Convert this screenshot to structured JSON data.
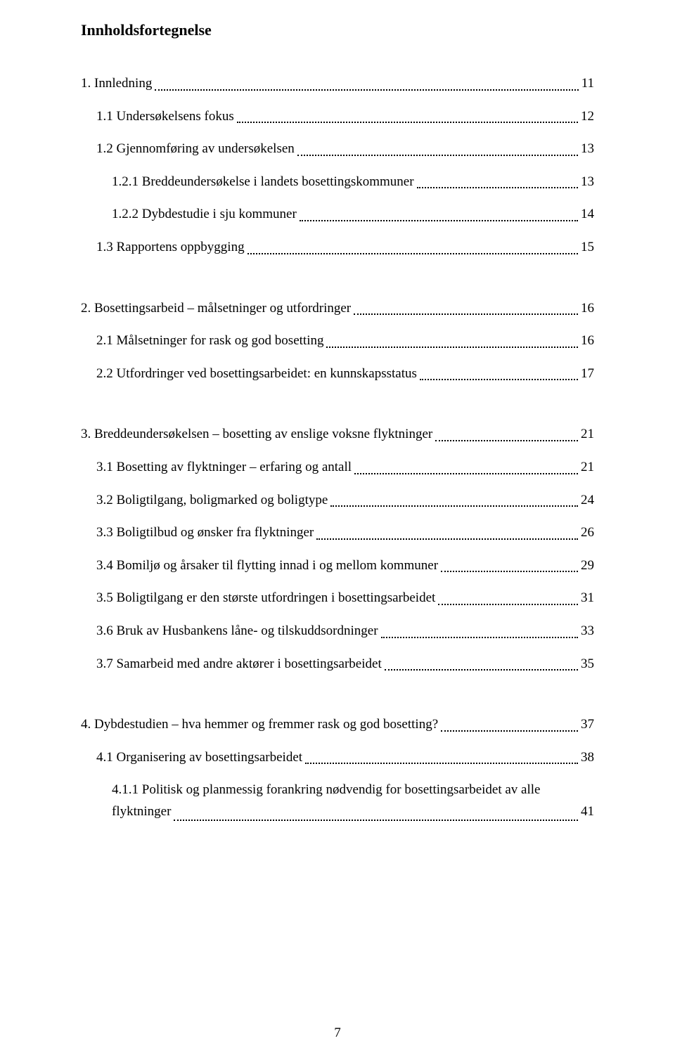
{
  "title": "Innholdsfortegnelse",
  "page_number": "7",
  "text_color": "#000000",
  "background_color": "#ffffff",
  "font_family": "Times New Roman",
  "title_fontsize": 22,
  "entry_fontsize": 19,
  "entries": [
    {
      "level": 0,
      "label": "1. Innledning",
      "page": "11"
    },
    {
      "level": 1,
      "label": "1.1 Undersøkelsens fokus",
      "page": "12"
    },
    {
      "level": 1,
      "label": "1.2 Gjennomføring av undersøkelsen",
      "page": "13"
    },
    {
      "level": 2,
      "label": "1.2.1 Breddeundersøkelse i landets bosettingskommuner",
      "page": "13"
    },
    {
      "level": 2,
      "label": "1.2.2 Dybdestudie i sju kommuner",
      "page": "14"
    },
    {
      "level": 1,
      "label": "1.3 Rapportens oppbygging",
      "page": "15"
    },
    {
      "type": "gap"
    },
    {
      "level": 0,
      "label": "2. Bosettingsarbeid – målsetninger og utfordringer",
      "page": "16"
    },
    {
      "level": 1,
      "label": "2.1 Målsetninger for rask og god bosetting",
      "page": "16"
    },
    {
      "level": 1,
      "label": "2.2 Utfordringer ved bosettingsarbeidet: en kunnskapsstatus",
      "page": "17"
    },
    {
      "type": "gap"
    },
    {
      "level": 0,
      "label": "3. Breddeundersøkelsen – bosetting av enslige voksne flyktninger",
      "page": "21"
    },
    {
      "level": 1,
      "label": "3.1 Bosetting av flyktninger – erfaring og antall",
      "page": "21"
    },
    {
      "level": 1,
      "label": "3.2 Boligtilgang, boligmarked og boligtype",
      "page": "24"
    },
    {
      "level": 1,
      "label": "3.3 Boligtilbud og ønsker fra flyktninger",
      "page": "26"
    },
    {
      "level": 1,
      "label": "3.4 Bomiljø og årsaker til flytting innad i og mellom kommuner",
      "page": "29"
    },
    {
      "level": 1,
      "label": "3.5 Boligtilgang er den største utfordringen i bosettingsarbeidet",
      "page": "31"
    },
    {
      "level": 1,
      "label": "3.6 Bruk av Husbankens låne- og tilskuddsordninger",
      "page": "33"
    },
    {
      "level": 1,
      "label": "3.7 Samarbeid med andre aktører i bosettingsarbeidet",
      "page": "35"
    },
    {
      "type": "gap"
    },
    {
      "level": 0,
      "label": "4. Dybdestudien – hva hemmer og fremmer rask og god bosetting?",
      "page": "37"
    },
    {
      "level": 1,
      "label": "4.1 Organisering av bosettingsarbeidet",
      "page": "38"
    },
    {
      "type": "multiline",
      "level": 2,
      "line1": "4.1.1 Politisk og planmessig forankring nødvendig for bosettingsarbeidet av alle",
      "line2_label": "flyktninger",
      "page": "41"
    }
  ]
}
